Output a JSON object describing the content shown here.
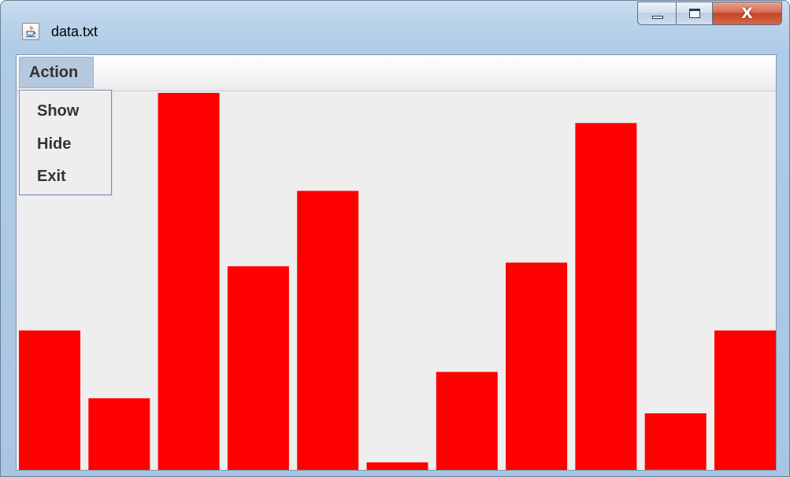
{
  "window": {
    "title": "data.txt",
    "icon": "java-cup-icon",
    "controls": {
      "minimize_icon": "minimize-icon",
      "maximize_icon": "maximize-icon",
      "close_icon": "close-icon",
      "close_glyph": "X"
    }
  },
  "menubar": {
    "menus": [
      {
        "label": "Action"
      }
    ]
  },
  "popup_menu": {
    "items": [
      {
        "label": "Show"
      },
      {
        "label": "Hide"
      },
      {
        "label": "Exit"
      }
    ]
  },
  "chart_data": {
    "type": "bar",
    "bar_color": "#ff0000",
    "background": "#eeeeee",
    "values": [
      37,
      19,
      100,
      54,
      74,
      2,
      26,
      55,
      92,
      15,
      37
    ],
    "ylim": [
      0,
      100
    ],
    "grid": false
  }
}
